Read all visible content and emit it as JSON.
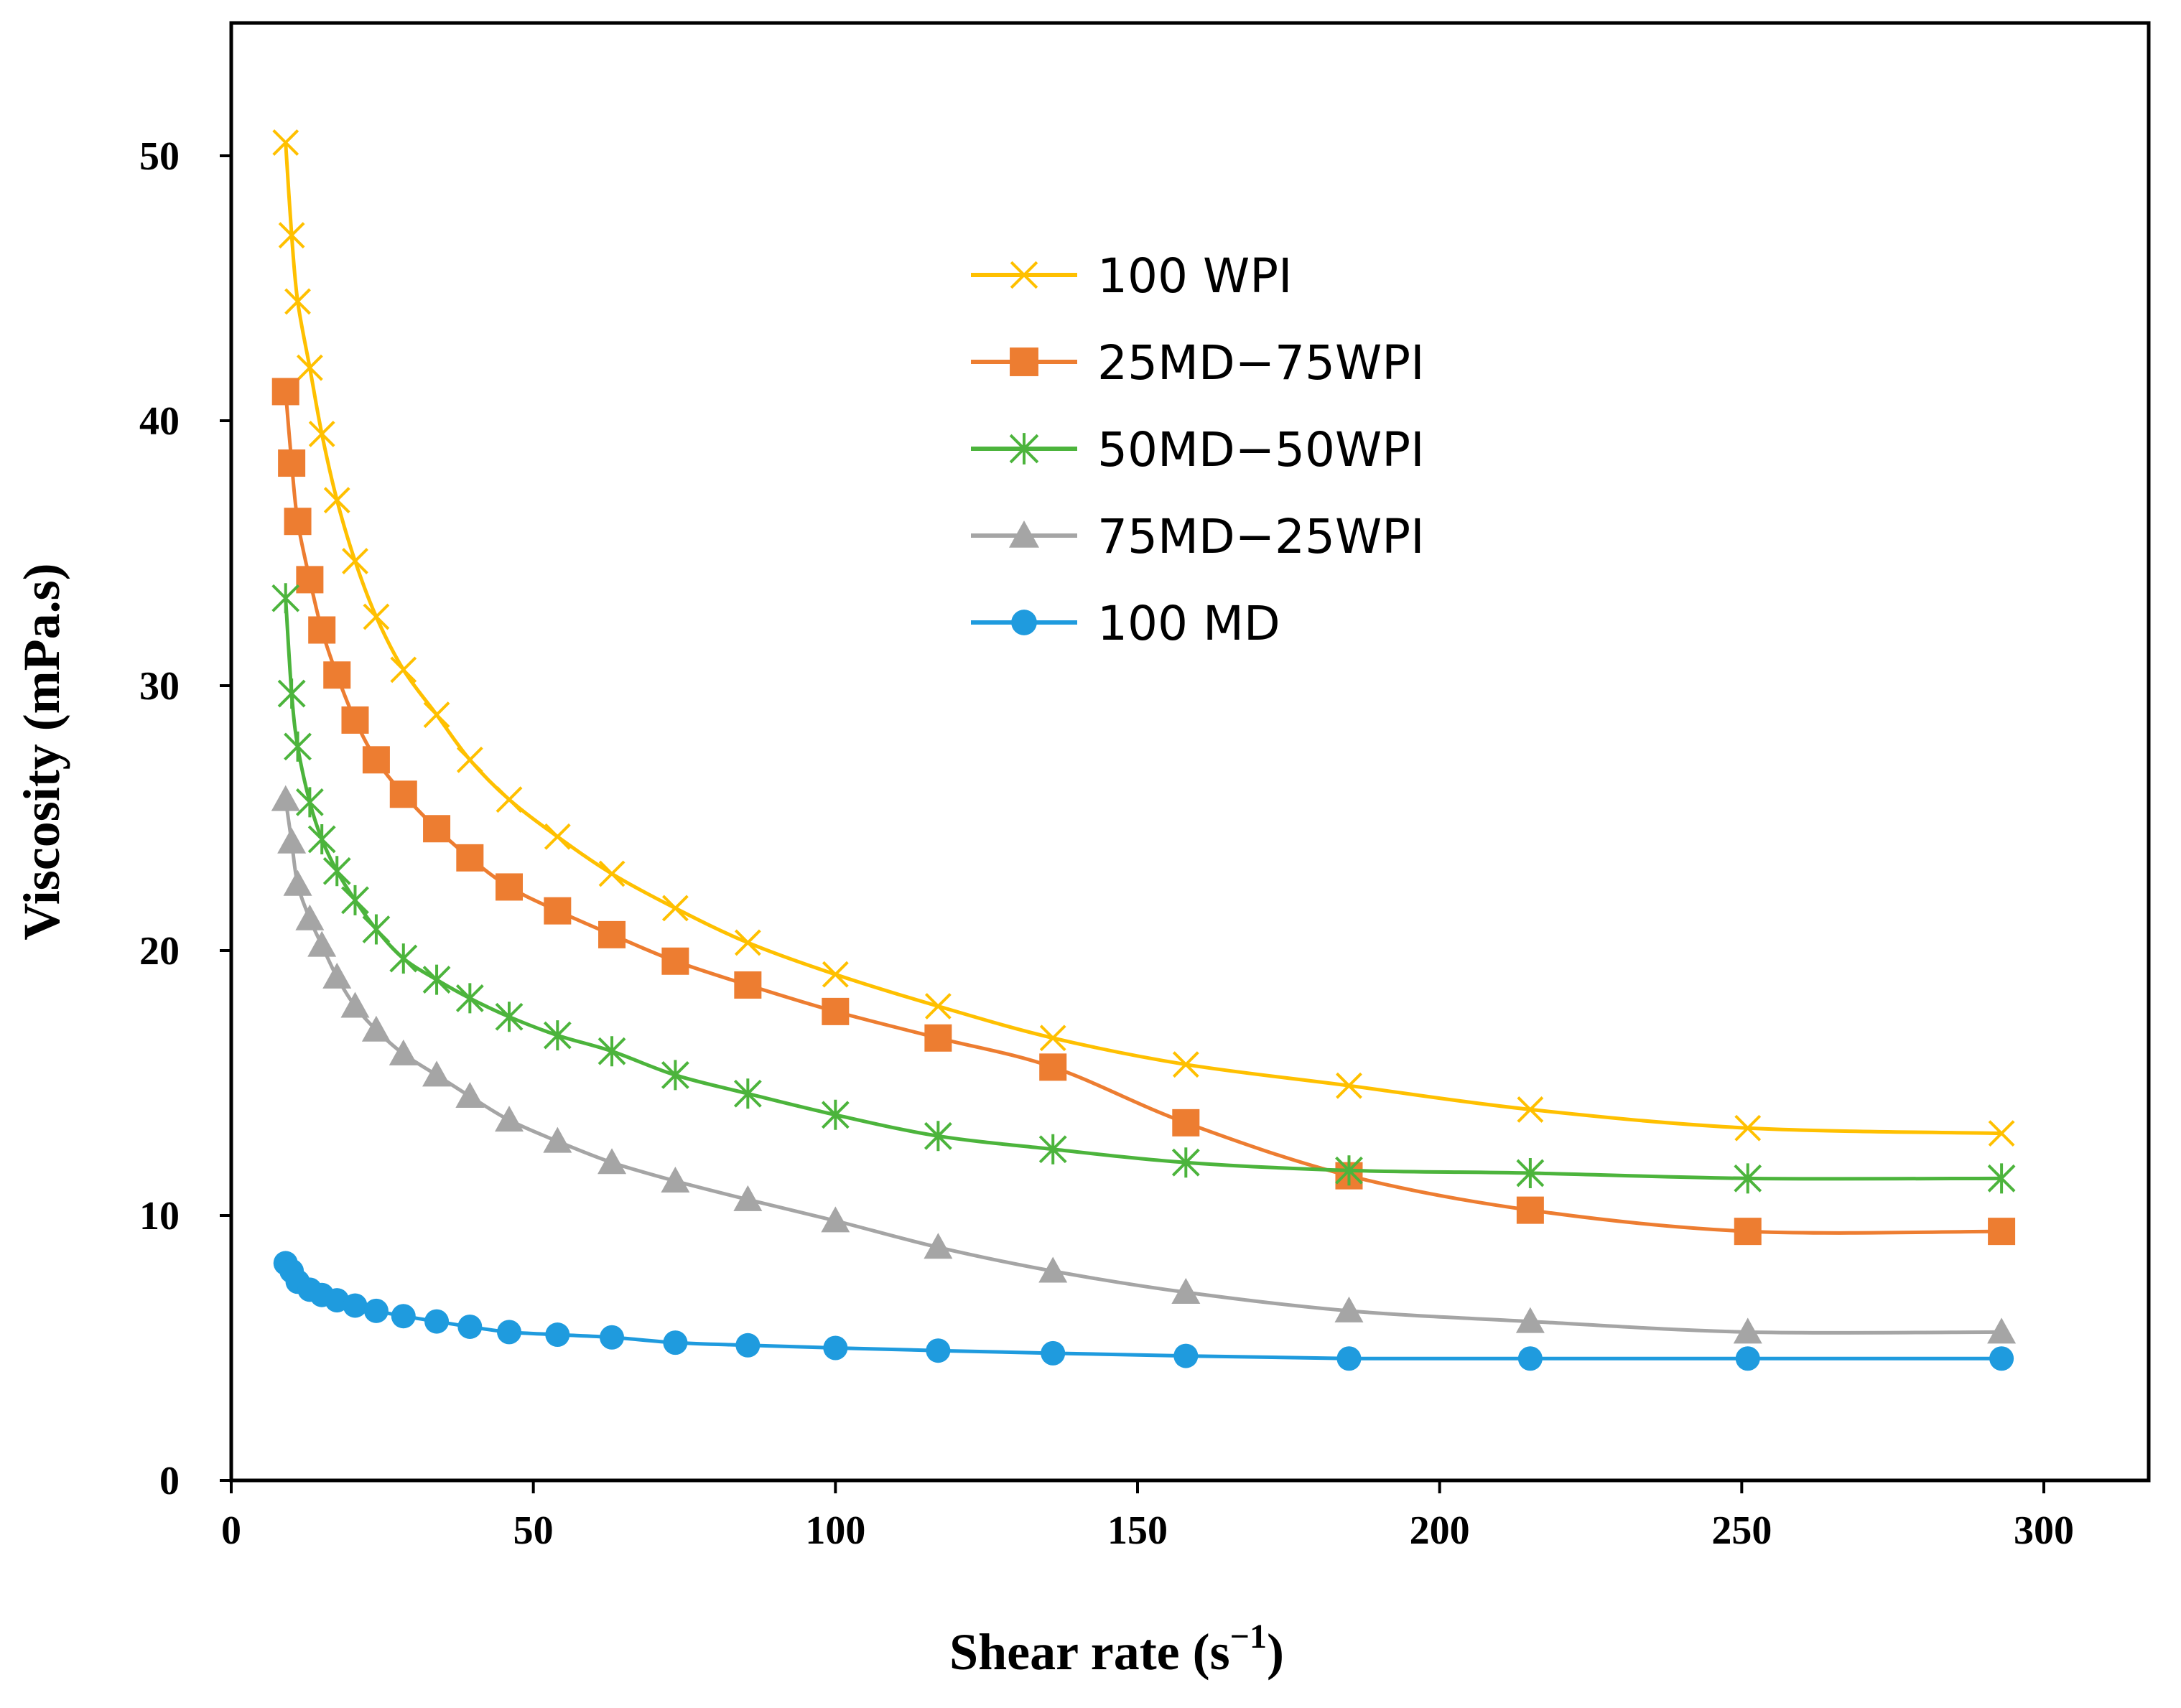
{
  "chart_data": {
    "type": "line",
    "title": "",
    "xlabel": "Shear rate (s",
    "xlabel_superscript": "−1",
    "xlabel_close": ")",
    "ylabel": "Viscosity (mPa.s)",
    "xlim": [
      0,
      320
    ],
    "ylim": [
      0,
      55
    ],
    "xticks": [
      0,
      50,
      100,
      150,
      200,
      250,
      300
    ],
    "yticks": [
      0,
      10,
      20,
      30,
      40,
      50
    ],
    "grid": false,
    "legend_position": "upper-center",
    "x": [
      9,
      10,
      11,
      13,
      15,
      17.5,
      20.5,
      24,
      28.5,
      34,
      39.5,
      46,
      54,
      63,
      73.5,
      85.5,
      100,
      117,
      136,
      158,
      185,
      215,
      251,
      293
    ],
    "series": [
      {
        "name": "100 WPI",
        "color": "#FFC000",
        "marker": "x",
        "values": [
          50.5,
          47.0,
          44.5,
          42.0,
          39.5,
          37.0,
          34.7,
          32.6,
          30.6,
          28.9,
          27.2,
          25.7,
          24.3,
          22.9,
          21.6,
          20.3,
          19.1,
          17.9,
          16.7,
          15.7,
          14.9,
          14.0,
          13.3,
          13.1
        ]
      },
      {
        "name": "25MD−75WPI",
        "color": "#ED7D31",
        "marker": "square",
        "values": [
          41.1,
          38.4,
          36.2,
          34.0,
          32.1,
          30.4,
          28.7,
          27.2,
          25.9,
          24.6,
          23.5,
          22.4,
          21.5,
          20.6,
          19.6,
          18.7,
          17.7,
          16.7,
          15.6,
          13.5,
          11.5,
          10.2,
          9.4,
          9.4
        ]
      },
      {
        "name": "50MD−50WPI",
        "color": "#4CB43C",
        "marker": "asterisk",
        "values": [
          33.3,
          29.7,
          27.7,
          25.6,
          24.2,
          23.0,
          21.9,
          20.8,
          19.7,
          18.9,
          18.2,
          17.5,
          16.8,
          16.2,
          15.3,
          14.6,
          13.8,
          13.0,
          12.5,
          12.0,
          11.7,
          11.6,
          11.4,
          11.4
        ]
      },
      {
        "name": "75MD−25WPI",
        "color": "#A5A5A5",
        "marker": "triangle",
        "values": [
          25.7,
          24.1,
          22.5,
          21.2,
          20.2,
          19.0,
          17.9,
          17.0,
          16.1,
          15.3,
          14.5,
          13.6,
          12.8,
          12.0,
          11.3,
          10.6,
          9.8,
          8.8,
          7.9,
          7.1,
          6.4,
          6.0,
          5.6,
          5.6
        ]
      },
      {
        "name": "100 MD",
        "color": "#1F9BDE",
        "marker": "circle",
        "values": [
          8.2,
          7.9,
          7.5,
          7.2,
          7.0,
          6.8,
          6.6,
          6.4,
          6.2,
          6.0,
          5.8,
          5.6,
          5.5,
          5.4,
          5.2,
          5.1,
          5.0,
          4.9,
          4.8,
          4.7,
          4.6,
          4.6,
          4.6,
          4.6
        ]
      }
    ]
  }
}
